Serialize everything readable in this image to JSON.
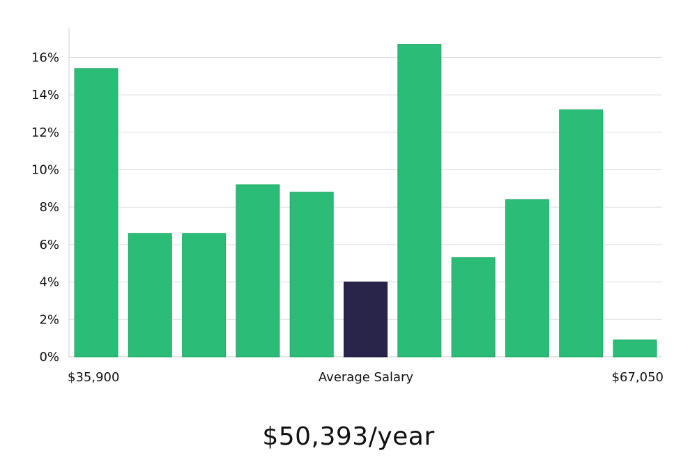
{
  "chart_data": {
    "type": "bar",
    "title": "",
    "xlabel": "Average Salary",
    "ylabel": "",
    "x_min_label": "$35,900",
    "x_max_label": "$67,050",
    "ylim": [
      0,
      17.5
    ],
    "yticks": [
      0,
      2,
      4,
      6,
      8,
      10,
      12,
      14,
      16
    ],
    "ytick_suffix": "%",
    "grid": true,
    "values": [
      15.4,
      6.6,
      6.6,
      9.2,
      8.8,
      4.0,
      16.7,
      5.3,
      8.4,
      13.2,
      0.9
    ],
    "highlight_index": 5,
    "colors": {
      "bar": "#2bbd77",
      "bar_edge": "#22a866",
      "highlight": "#28244a",
      "grid": "#dddddd",
      "axis": "#cccccc"
    }
  },
  "salary": {
    "headline": "$50,393/year"
  }
}
